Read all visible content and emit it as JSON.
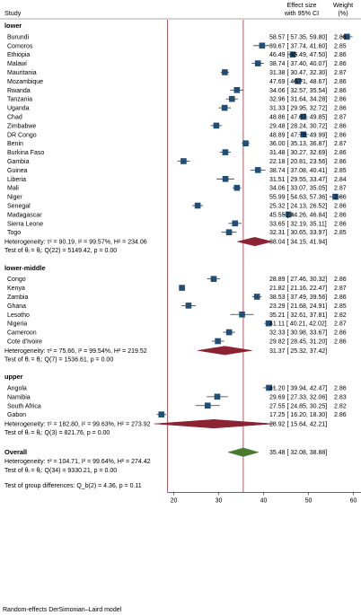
{
  "chart_data": {
    "type": "forest",
    "header": {
      "study": "Study",
      "effect_line1": "Effect size",
      "effect_line2": "with 95% CI",
      "weight_line1": "Weight",
      "weight_line2": "(%)"
    },
    "xaxis": {
      "ticks": [
        20,
        30,
        40,
        50,
        60
      ],
      "range": [
        15,
        62
      ]
    },
    "reference_line": 35.48,
    "groups": [
      {
        "name": "lower",
        "studies": [
          {
            "name": "Burundi",
            "es": 58.57,
            "lo": 57.35,
            "hi": 59.8,
            "text": "58.57 [ 57.35, 59.80]",
            "weight": "2.86"
          },
          {
            "name": "Comoros",
            "es": 39.67,
            "lo": 37.74,
            "hi": 41.6,
            "text": "39.67 [ 37.74, 41.60]",
            "weight": "2.85"
          },
          {
            "name": "Ethiopia",
            "es": 46.49,
            "lo": 45.49,
            "hi": 47.5,
            "text": "46.49 [ 45.49, 47.50]",
            "weight": "2.86"
          },
          {
            "name": "Malawi",
            "es": 38.74,
            "lo": 37.4,
            "hi": 40.07,
            "text": "38.74 [ 37.40, 40.07]",
            "weight": "2.86"
          },
          {
            "name": "Mauritania",
            "es": 31.38,
            "lo": 30.47,
            "hi": 32.3,
            "text": "31.38 [ 30.47, 32.30]",
            "weight": "2.87"
          },
          {
            "name": "Mozambique",
            "es": 47.69,
            "lo": 46.71,
            "hi": 48.67,
            "text": "47.69 [ 46.71, 48.67]",
            "weight": "2.86"
          },
          {
            "name": "Rwanda",
            "es": 34.06,
            "lo": 32.57,
            "hi": 35.54,
            "text": "34.06 [ 32.57, 35.54]",
            "weight": "2.86"
          },
          {
            "name": "Tanzania",
            "es": 32.96,
            "lo": 31.64,
            "hi": 34.28,
            "text": "32.96 [ 31.64, 34.28]",
            "weight": "2.86"
          },
          {
            "name": "Uganda",
            "es": 31.33,
            "lo": 29.95,
            "hi": 32.72,
            "text": "31.33 [ 29.95, 32.72]",
            "weight": "2.86"
          },
          {
            "name": "Chad",
            "es": 48.86,
            "lo": 47.87,
            "hi": 49.85,
            "text": "48.86 [ 47.87, 49.85]",
            "weight": "2.87"
          },
          {
            "name": "Zimbabwe",
            "es": 29.48,
            "lo": 28.24,
            "hi": 30.72,
            "text": "29.48 [ 28.24, 30.72]",
            "weight": "2.86"
          },
          {
            "name": "DR Congo",
            "es": 48.89,
            "lo": 47.78,
            "hi": 49.99,
            "text": "48.89 [ 47.78, 49.99]",
            "weight": "2.86"
          },
          {
            "name": "Benin",
            "es": 36.0,
            "lo": 35.13,
            "hi": 36.87,
            "text": "36.00 [ 35.13, 36.87]",
            "weight": "2.87"
          },
          {
            "name": "Burkina Faso",
            "es": 31.48,
            "lo": 30.27,
            "hi": 32.69,
            "text": "31.48 [ 30.27, 32.69]",
            "weight": "2.86"
          },
          {
            "name": "Gambia",
            "es": 22.18,
            "lo": 20.81,
            "hi": 23.56,
            "text": "22.18 [ 20.81, 23.56]",
            "weight": "2.86"
          },
          {
            "name": "Guinea",
            "es": 38.74,
            "lo": 37.08,
            "hi": 40.41,
            "text": "38.74 [ 37.08, 40.41]",
            "weight": "2.85"
          },
          {
            "name": "Liberia",
            "es": 31.51,
            "lo": 29.55,
            "hi": 33.47,
            "text": "31.51 [ 29.55, 33.47]",
            "weight": "2.84"
          },
          {
            "name": "Mali",
            "es": 34.06,
            "lo": 33.07,
            "hi": 35.05,
            "text": "34.06 [ 33.07, 35.05]",
            "weight": "2.87"
          },
          {
            "name": "Niger",
            "es": 55.99,
            "lo": 54.63,
            "hi": 57.36,
            "text": "55.99 [ 54.63, 57.36]",
            "weight": "2.86"
          },
          {
            "name": "Senegal",
            "es": 25.32,
            "lo": 24.13,
            "hi": 26.52,
            "text": "25.32 [ 24.13, 26.52]",
            "weight": "2.86"
          },
          {
            "name": "Madagascar",
            "es": 45.55,
            "lo": 44.26,
            "hi": 46.84,
            "text": "45.55 [ 44.26, 46.84]",
            "weight": "2.86"
          },
          {
            "name": "Sierra Leone",
            "es": 33.65,
            "lo": 32.19,
            "hi": 35.11,
            "text": "33.65 [ 32.19, 35.11]",
            "weight": "2.86"
          },
          {
            "name": "Togo",
            "es": 32.31,
            "lo": 30.65,
            "hi": 33.97,
            "text": "32.31 [ 30.65, 33.97]",
            "weight": "2.85"
          }
        ],
        "subtotal": {
          "es": 38.04,
          "lo": 34.15,
          "hi": 41.94,
          "text": "38.04 [ 34.15, 41.94]"
        },
        "heterogeneity": "Heterogeneity: τ² = 90.19, I² = 99.57%, H² = 234.06",
        "test": "Test of θᵢ = θⱼ: Q(22) = 5149.42, p = 0.00"
      },
      {
        "name": "lower-middle",
        "studies": [
          {
            "name": "Congo",
            "es": 28.89,
            "lo": 27.46,
            "hi": 30.32,
            "text": "28.89 [ 27.46, 30.32]",
            "weight": "2.86"
          },
          {
            "name": "Kenya",
            "es": 21.82,
            "lo": 21.16,
            "hi": 22.47,
            "text": "21.82 [ 21.16, 22.47]",
            "weight": "2.87"
          },
          {
            "name": "Zambia",
            "es": 38.53,
            "lo": 37.49,
            "hi": 39.56,
            "text": "38.53 [ 37.49, 39.56]",
            "weight": "2.86"
          },
          {
            "name": "Ghana",
            "es": 23.29,
            "lo": 21.68,
            "hi": 24.91,
            "text": "23.29 [ 21.68, 24.91]",
            "weight": "2.85"
          },
          {
            "name": "Lesotho",
            "es": 35.21,
            "lo": 32.61,
            "hi": 37.81,
            "text": "35.21 [ 32.61, 37.81]",
            "weight": "2.82"
          },
          {
            "name": "Nigeria",
            "es": 41.11,
            "lo": 40.21,
            "hi": 42.02,
            "text": "41.11 [ 40.21, 42.02]",
            "weight": "2.87"
          },
          {
            "name": "Cameroon",
            "es": 32.33,
            "lo": 30.98,
            "hi": 33.67,
            "text": "32.33 [ 30.98, 33.67]",
            "weight": "2.86"
          },
          {
            "name": "Cote d'Ivoire",
            "es": 29.82,
            "lo": 28.45,
            "hi": 31.2,
            "text": "29.82 [ 28.45, 31.20]",
            "weight": "2.86"
          }
        ],
        "subtotal": {
          "es": 31.37,
          "lo": 25.32,
          "hi": 37.42,
          "text": "31.37 [ 25.32, 37.42]"
        },
        "heterogeneity": "Heterogeneity: τ² = 75.66, I² = 99.54%, H² = 219.52",
        "test": "Test of θᵢ = θⱼ: Q(7) = 1536.61, p = 0.00"
      },
      {
        "name": "upper",
        "studies": [
          {
            "name": "Angola",
            "es": 41.2,
            "lo": 39.94,
            "hi": 42.47,
            "text": "41.20 [ 39.94, 42.47]",
            "weight": "2.86"
          },
          {
            "name": "Namibia",
            "es": 29.69,
            "lo": 27.33,
            "hi": 32.06,
            "text": "29.69 [ 27.33, 32.06]",
            "weight": "2.83"
          },
          {
            "name": "South Africa",
            "es": 27.55,
            "lo": 24.85,
            "hi": 30.25,
            "text": "27.55 [ 24.85, 30.25]",
            "weight": "2.82"
          },
          {
            "name": "Gabon",
            "es": 17.25,
            "lo": 16.2,
            "hi": 18.3,
            "text": "17.25 [ 16.20, 18.30]",
            "weight": "2.86"
          }
        ],
        "subtotal": {
          "es": 28.92,
          "lo": 15.64,
          "hi": 42.21,
          "text": "28.92 [ 15.64, 42.21]"
        },
        "heterogeneity": "Heterogeneity: τ² = 182.80, I² = 99.63%, H² = 273.92",
        "test": "Test of θᵢ = θⱼ: Q(3) = 821.76, p = 0.00"
      }
    ],
    "overall": {
      "label": "Overall",
      "es": 35.48,
      "lo": 32.08,
      "hi": 38.88,
      "text": "35.48 [ 32.08, 38.88]",
      "heterogeneity": "Heterogeneity: τ² = 104.71, I² = 99.64%, H² = 274.42",
      "test": "Test of θᵢ = θⱼ: Q(34) = 9330.21, p = 0.00"
    },
    "group_test": "Test of group differences: Q_b(2) = 4.36, p = 0.11",
    "footnote": "Random-effects DerSimonian–Laird model",
    "colors": {
      "box": "#1f4e79",
      "subtotal_diamond": "#8b2332",
      "overall_diamond": "#4a7a2f",
      "reference_line": "#a03040",
      "axis": "#333333",
      "text": "#1a1a1a"
    }
  }
}
